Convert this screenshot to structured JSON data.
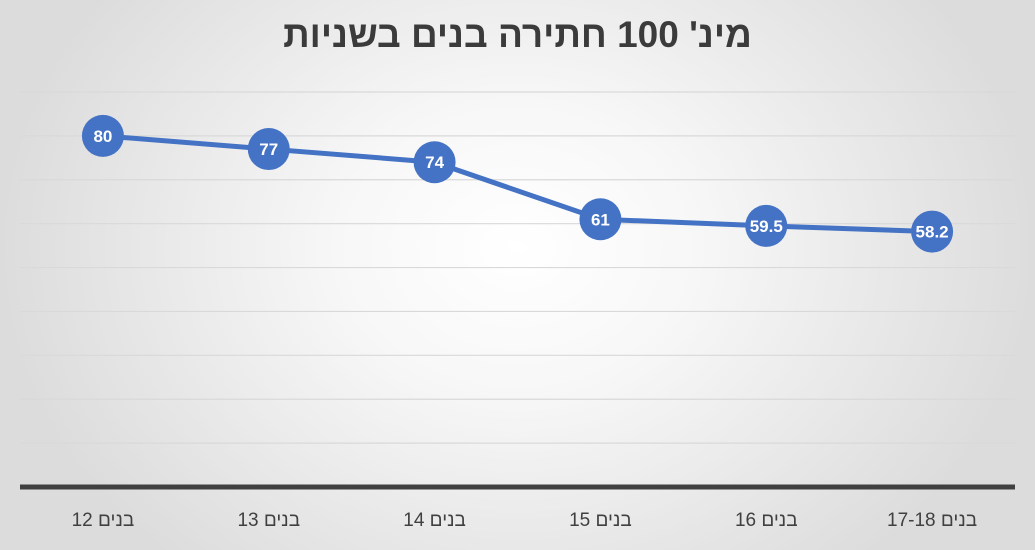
{
  "chart_data": {
    "type": "line",
    "title": "מינ' 100 חתירה בנים בשניות",
    "categories": [
      "בנים 12",
      "בנים 13",
      "בנים 14",
      "בנים 15",
      "בנים 16",
      "בנים 17-18"
    ],
    "series": [
      {
        "values": [
          80,
          77,
          74,
          61,
          59.5,
          58.2
        ],
        "labels": [
          "80",
          "77",
          "74",
          "61",
          "59.5",
          "58.2"
        ]
      }
    ],
    "ylim": [
      0,
      90
    ],
    "grid": true,
    "colors": {
      "line": "#4472c4",
      "label_text": "#ffffff",
      "axis": "#404040",
      "grid": "#d9d9d9",
      "tick_text": "#404040"
    }
  }
}
